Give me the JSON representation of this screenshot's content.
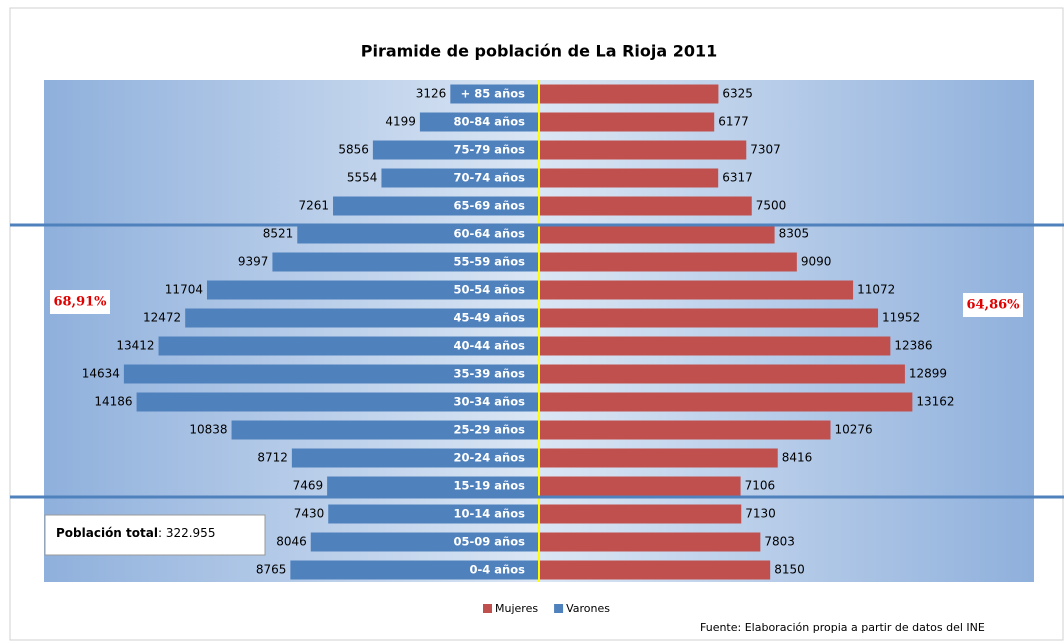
{
  "chart_data": {
    "type": "pyramid",
    "title": "Piramide de población de La Rioja 2011",
    "categories": [
      "+ 85 años",
      "80-84 años",
      "75-79 años",
      "70-74 años",
      "65-69 años",
      "60-64 años",
      "55-59 años",
      "50-54 años",
      "45-49 años",
      "40-44 años",
      "35-39 años",
      "30-34 años",
      "25-29 años",
      "20-24 años",
      "15-19 años",
      "10-14 años",
      "05-09 años",
      "0-4 años"
    ],
    "series": [
      {
        "name": "Mujeres",
        "color": "#c0504d",
        "side": "right",
        "values": [
          6325,
          6177,
          7307,
          6317,
          7500,
          8305,
          9090,
          11072,
          11952,
          12386,
          12899,
          13162,
          10276,
          8416,
          7106,
          7130,
          7803,
          8150
        ]
      },
      {
        "name": "Varones",
        "color": "#4f81bd",
        "side": "left",
        "values": [
          3126,
          4199,
          5856,
          5554,
          7261,
          8521,
          9397,
          11704,
          12472,
          13412,
          14634,
          14186,
          10838,
          8712,
          7469,
          7430,
          8046,
          8765
        ]
      }
    ],
    "xlim": [
      -17450,
      17450
    ],
    "annotations": {
      "left_share": "68,91%",
      "right_share": "64,86%",
      "total_label": "Población total",
      "total_value": ": 322.955",
      "source": "Fuente: Elaboración propia a partir de datos del INE"
    }
  }
}
